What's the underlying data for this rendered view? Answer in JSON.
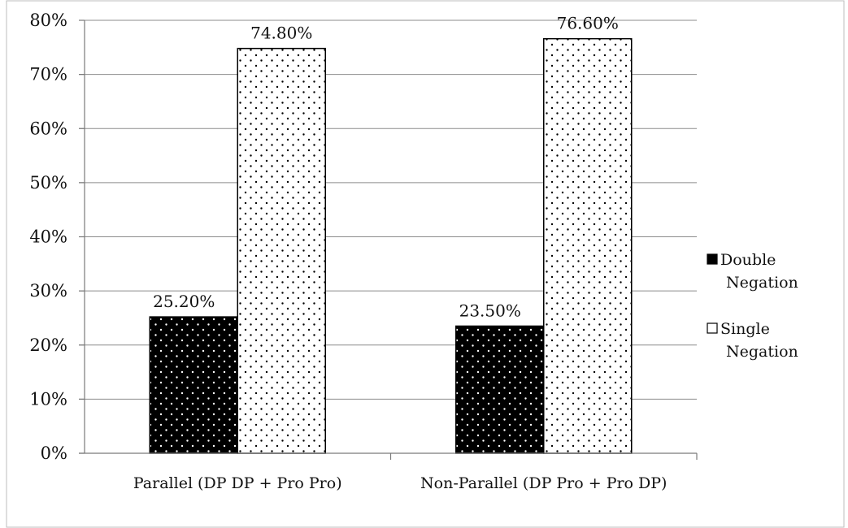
{
  "chart_data": {
    "type": "bar",
    "categories": [
      "Parallel (DP DP + Pro Pro)",
      "Non-Parallel (DP Pro + Pro DP)"
    ],
    "series": [
      {
        "name": "Double Negation",
        "values": [
          25.2,
          23.5
        ],
        "labels": [
          "25.20%",
          "23.50%"
        ],
        "fill": "#000000",
        "dots": "#ffffff"
      },
      {
        "name": "Single Negation",
        "values": [
          74.8,
          76.6
        ],
        "labels": [
          "74.80%",
          "76.60%"
        ],
        "fill": "#ffffff",
        "dots": "#000000"
      }
    ],
    "ylim": [
      0,
      80
    ],
    "yticks": [
      0,
      10,
      20,
      30,
      40,
      50,
      60,
      70,
      80
    ],
    "ytick_labels": [
      "0%",
      "10%",
      "20%",
      "30%",
      "40%",
      "50%",
      "60%",
      "70%",
      "80%"
    ],
    "grid": true,
    "legend_position": "right",
    "title": "",
    "xlabel": "",
    "ylabel": ""
  }
}
